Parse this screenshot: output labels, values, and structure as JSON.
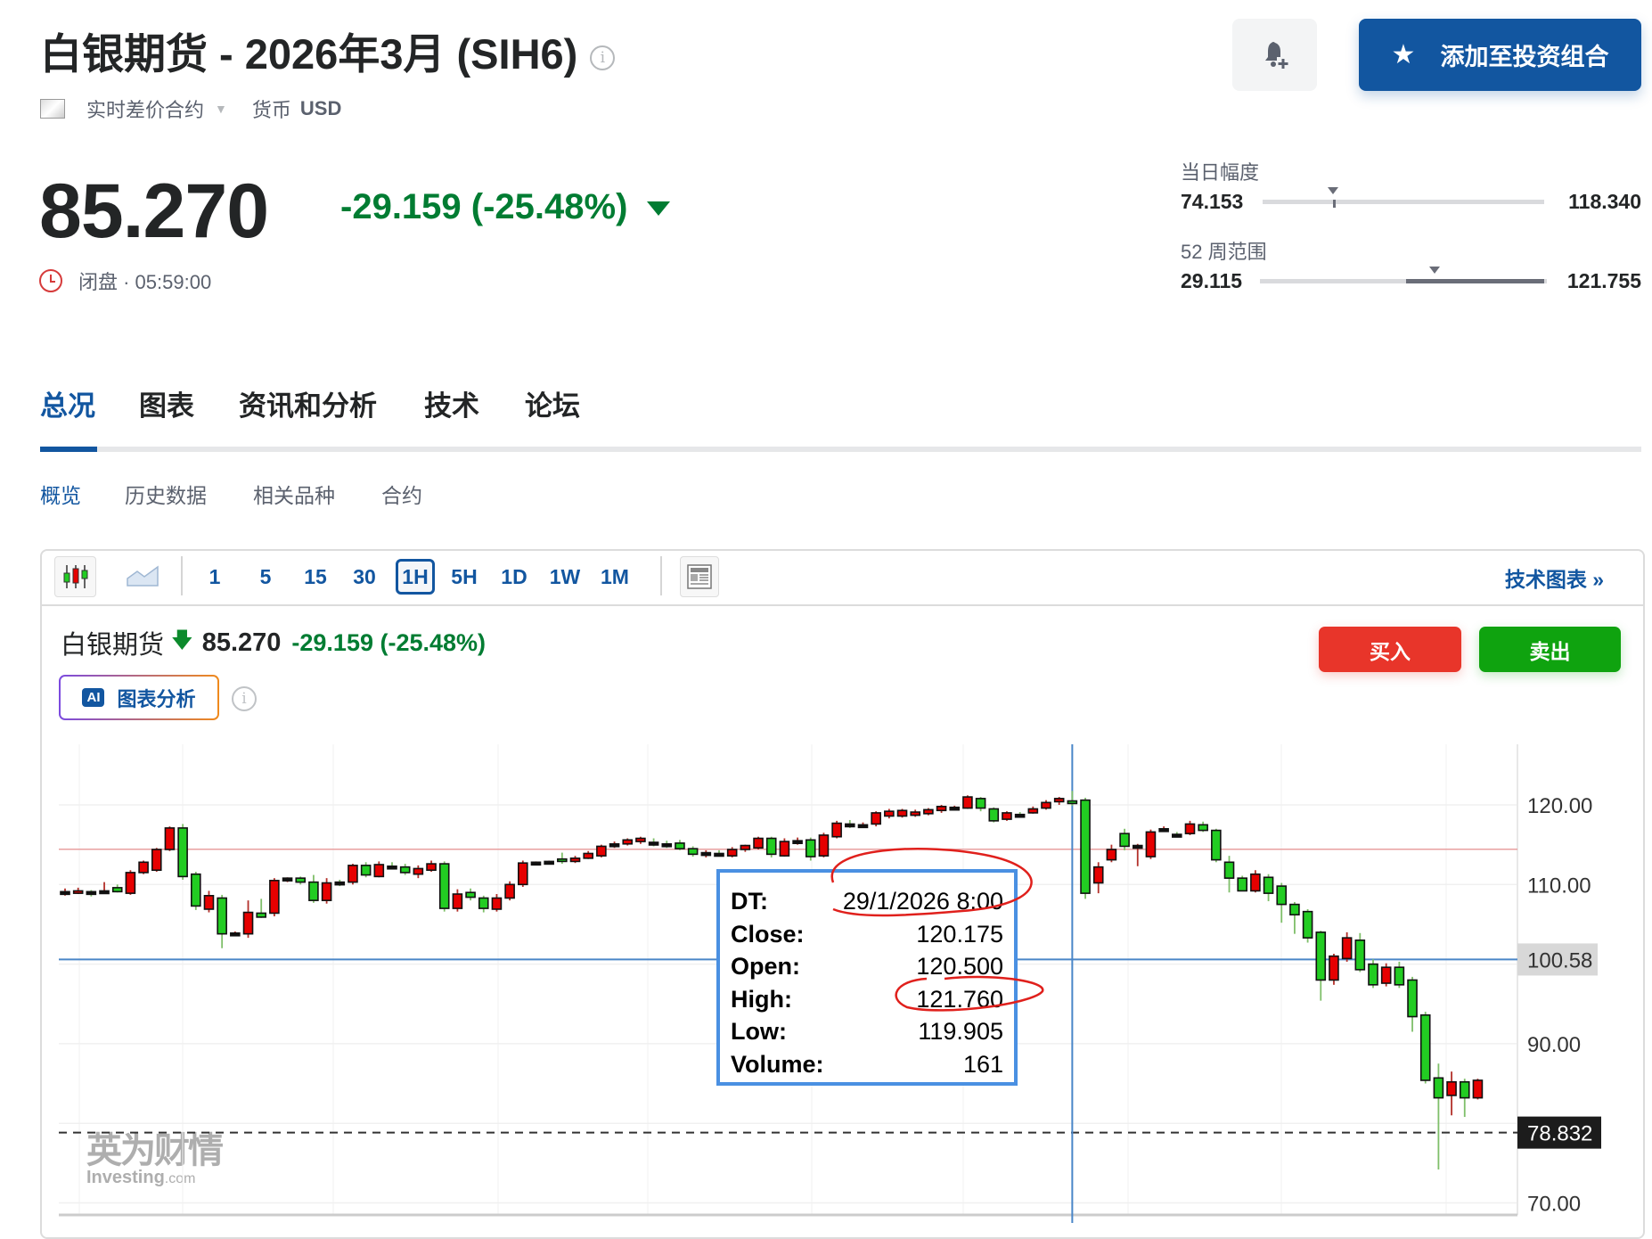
{
  "header": {
    "title": "白银期货 - 2026年3月 (SIH6)",
    "contract_type": "实时差价合约",
    "currency_label": "货币",
    "currency": "USD",
    "price": "85.270",
    "change": "-29.159 (-25.48%)",
    "status": "闭盘 · 05:59:00",
    "alert_icon": "bell-plus-icon",
    "add_portfolio_label": "添加至投资组合"
  },
  "ranges": {
    "day": {
      "label": "当日幅度",
      "low": "74.153",
      "high": "118.340",
      "current_pct": 25
    },
    "week52": {
      "label": "52 周范围",
      "low": "29.115",
      "high": "121.755",
      "current_pct": 61,
      "fill_from_pct": 51,
      "fill_to_pct": 100
    }
  },
  "tabs": [
    {
      "label": "总况",
      "active": true
    },
    {
      "label": "图表"
    },
    {
      "label": "资讯和分析"
    },
    {
      "label": "技术"
    },
    {
      "label": "论坛"
    }
  ],
  "subtabs": [
    {
      "label": "概览",
      "active": true
    },
    {
      "label": "历史数据"
    },
    {
      "label": "相关品种"
    },
    {
      "label": "合约"
    }
  ],
  "toolbar": {
    "intervals": [
      "1",
      "5",
      "15",
      "30",
      "1H",
      "5H",
      "1D",
      "1W",
      "1M"
    ],
    "active_interval": "1H",
    "tech_chart_label": "技术图表 »"
  },
  "chart_header": {
    "name": "白银期货",
    "price": "85.270",
    "change": "-29.159 (-25.48%)",
    "ai_badge": "AI",
    "ai_label": "图表分析",
    "buy_label": "买入",
    "sell_label": "卖出"
  },
  "colors": {
    "accent": "#1256a0",
    "down": "#007c32",
    "up_candle": "#e60000",
    "down_candle": "#22cc22",
    "buy": "#e8352a",
    "sell": "#0fa30f"
  },
  "tooltip": {
    "rows": [
      {
        "k": "DT:",
        "v": "29/1/2026 8:00"
      },
      {
        "k": "Close:",
        "v": "120.175"
      },
      {
        "k": "Open:",
        "v": "120.500"
      },
      {
        "k": "High:",
        "v": "121.760"
      },
      {
        "k": "Low:",
        "v": "119.905"
      },
      {
        "k": "Volume:",
        "v": "161"
      }
    ]
  },
  "watermark": {
    "cn": "英为财情",
    "en": "Investing",
    "en_suffix": ".com"
  },
  "chart_data": {
    "type": "candlestick",
    "interval": "1H",
    "y_ticks": [
      "120.00",
      "110.00",
      "90.00",
      "70.00"
    ],
    "y_grid": [
      120,
      110,
      100,
      90,
      80,
      70
    ],
    "ylim": [
      68,
      126
    ],
    "grid": true,
    "crosshair": {
      "candle_index": 77,
      "price": "100.58"
    },
    "prev_close_line": 114.429,
    "dashed_line": "78.832",
    "candles_ohlc": [
      [
        108.9,
        109.5,
        108.6,
        109.1
      ],
      [
        108.9,
        109.6,
        108.8,
        109.2
      ],
      [
        109.1,
        109.3,
        108.5,
        109.0
      ],
      [
        109.0,
        110.3,
        109.0,
        109.2
      ],
      [
        109.6,
        110.0,
        109.0,
        109.1
      ],
      [
        108.9,
        111.8,
        108.7,
        111.5
      ],
      [
        111.5,
        113.0,
        111.3,
        112.8
      ],
      [
        111.8,
        114.6,
        111.6,
        114.4
      ],
      [
        114.4,
        117.3,
        114.2,
        117.1
      ],
      [
        117.1,
        117.6,
        110.6,
        111.0
      ],
      [
        111.3,
        111.6,
        106.8,
        107.3
      ],
      [
        106.9,
        109.2,
        106.5,
        108.6
      ],
      [
        108.3,
        108.7,
        102.0,
        103.8
      ],
      [
        103.8,
        104.1,
        103.6,
        103.9
      ],
      [
        103.8,
        108.0,
        103.3,
        106.5
      ],
      [
        106.4,
        108.2,
        105.8,
        105.9
      ],
      [
        106.4,
        110.8,
        106.0,
        110.5
      ],
      [
        110.6,
        110.9,
        110.3,
        110.8
      ],
      [
        110.8,
        111.0,
        110.0,
        110.3
      ],
      [
        110.3,
        111.2,
        107.7,
        108.0
      ],
      [
        108.0,
        110.8,
        107.6,
        110.2
      ],
      [
        110.3,
        110.6,
        109.8,
        110.1
      ],
      [
        110.3,
        112.6,
        110.0,
        112.4
      ],
      [
        112.4,
        112.8,
        110.9,
        111.2
      ],
      [
        111.0,
        112.9,
        110.9,
        112.5
      ],
      [
        112.3,
        112.8,
        111.9,
        112.3
      ],
      [
        112.2,
        112.6,
        111.2,
        111.5
      ],
      [
        111.3,
        112.4,
        110.8,
        112.0
      ],
      [
        111.8,
        113.0,
        111.6,
        112.6
      ],
      [
        112.6,
        112.9,
        106.6,
        107.0
      ],
      [
        107.0,
        109.4,
        106.6,
        108.8
      ],
      [
        109.0,
        109.5,
        108.0,
        108.4
      ],
      [
        108.3,
        108.6,
        106.5,
        107.0
      ],
      [
        106.9,
        108.8,
        106.6,
        108.3
      ],
      [
        108.3,
        110.4,
        108.0,
        110.0
      ],
      [
        110.0,
        113.0,
        109.7,
        112.7
      ],
      [
        112.7,
        112.9,
        112.5,
        112.8
      ],
      [
        112.8,
        113.0,
        112.6,
        112.9
      ],
      [
        113.2,
        114.0,
        112.6,
        112.9
      ],
      [
        112.9,
        113.6,
        112.7,
        113.3
      ],
      [
        113.3,
        114.2,
        113.2,
        113.9
      ],
      [
        113.6,
        115.0,
        113.4,
        114.8
      ],
      [
        115.0,
        115.4,
        114.6,
        115.1
      ],
      [
        115.1,
        115.8,
        114.9,
        115.6
      ],
      [
        115.4,
        116.0,
        115.1,
        115.8
      ],
      [
        115.3,
        115.8,
        114.8,
        115.2
      ],
      [
        115.1,
        115.5,
        114.6,
        115.0
      ],
      [
        115.2,
        115.6,
        114.3,
        114.5
      ],
      [
        114.5,
        114.8,
        113.5,
        113.8
      ],
      [
        113.8,
        114.3,
        113.4,
        114.0
      ],
      [
        113.9,
        114.3,
        113.5,
        113.8
      ],
      [
        113.6,
        114.7,
        113.4,
        114.4
      ],
      [
        114.4,
        115.0,
        114.1,
        114.9
      ],
      [
        114.6,
        116.0,
        114.4,
        115.8
      ],
      [
        115.8,
        116.0,
        113.4,
        113.8
      ],
      [
        113.6,
        115.8,
        113.5,
        115.4
      ],
      [
        115.3,
        115.9,
        115.0,
        115.5
      ],
      [
        115.6,
        115.9,
        113.0,
        113.5
      ],
      [
        113.6,
        116.5,
        113.4,
        116.2
      ],
      [
        116.0,
        118.0,
        115.8,
        117.7
      ],
      [
        117.6,
        118.1,
        117.1,
        117.4
      ],
      [
        117.3,
        117.8,
        117.2,
        117.5
      ],
      [
        117.6,
        119.2,
        117.3,
        119.0
      ],
      [
        118.6,
        119.5,
        118.3,
        119.2
      ],
      [
        118.6,
        119.5,
        118.4,
        119.3
      ],
      [
        118.7,
        119.4,
        118.5,
        119.1
      ],
      [
        118.9,
        119.6,
        118.7,
        119.4
      ],
      [
        119.3,
        120.0,
        119.0,
        119.8
      ],
      [
        119.6,
        119.9,
        119.4,
        119.7
      ],
      [
        119.6,
        121.2,
        119.5,
        121.0
      ],
      [
        120.8,
        121.0,
        119.2,
        119.6
      ],
      [
        119.5,
        119.7,
        117.8,
        118.0
      ],
      [
        118.2,
        119.2,
        118.0,
        119.0
      ],
      [
        118.8,
        119.1,
        118.6,
        118.8
      ],
      [
        119.0,
        119.8,
        118.9,
        119.5
      ],
      [
        119.6,
        120.6,
        119.4,
        120.3
      ],
      [
        120.4,
        121.0,
        120.0,
        120.8
      ],
      [
        120.5,
        121.76,
        119.905,
        120.175
      ],
      [
        120.6,
        120.9,
        108.2,
        108.9
      ],
      [
        110.2,
        112.8,
        108.9,
        112.2
      ],
      [
        113.1,
        115.0,
        112.8,
        114.4
      ],
      [
        116.4,
        117.0,
        114.3,
        114.8
      ],
      [
        114.8,
        115.1,
        112.3,
        114.9
      ],
      [
        113.5,
        116.9,
        113.2,
        116.6
      ],
      [
        116.9,
        117.3,
        116.6,
        117.0
      ],
      [
        116.3,
        116.6,
        116.1,
        116.2
      ],
      [
        116.4,
        118.0,
        116.2,
        117.6
      ],
      [
        117.5,
        117.9,
        116.6,
        116.8
      ],
      [
        116.8,
        117.0,
        112.8,
        113.1
      ],
      [
        112.8,
        113.6,
        109.0,
        110.8
      ],
      [
        110.8,
        111.1,
        109.6,
        109.2
      ],
      [
        109.2,
        111.8,
        109.0,
        111.3
      ],
      [
        110.9,
        111.3,
        107.9,
        108.9
      ],
      [
        109.8,
        110.2,
        105.2,
        107.5
      ],
      [
        107.5,
        107.8,
        103.8,
        106.2
      ],
      [
        106.6,
        106.9,
        102.7,
        103.3
      ],
      [
        104.0,
        104.2,
        95.4,
        98.0
      ],
      [
        98.0,
        101.3,
        97.4,
        101.0
      ],
      [
        100.7,
        104.0,
        100.3,
        103.3
      ],
      [
        103.0,
        103.9,
        99.0,
        99.3
      ],
      [
        100.0,
        100.6,
        97.0,
        97.4
      ],
      [
        97.6,
        100.1,
        97.2,
        99.6
      ],
      [
        99.6,
        100.3,
        97.0,
        97.4
      ],
      [
        98.0,
        98.4,
        91.5,
        93.4
      ],
      [
        93.6,
        94.0,
        85.0,
        85.4
      ],
      [
        85.7,
        87.5,
        74.2,
        83.2
      ],
      [
        83.5,
        86.5,
        81.0,
        85.2
      ],
      [
        85.2,
        85.6,
        80.8,
        83.2
      ],
      [
        83.2,
        85.6,
        83.0,
        85.4
      ]
    ]
  }
}
